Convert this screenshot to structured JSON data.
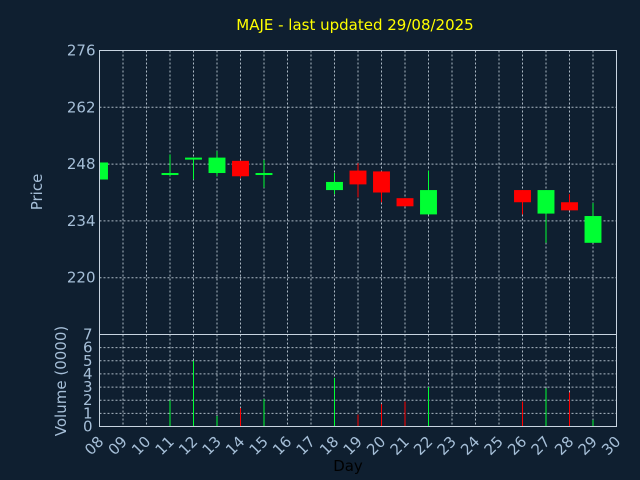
{
  "chart_data": {
    "type": "candlestick",
    "title": "MAJE - last updated 29/08/2025",
    "xlabel": "Day",
    "price_panel": {
      "ylabel": "Price",
      "ylim": [
        206,
        276
      ],
      "yticks": [
        220,
        234,
        248,
        262,
        276
      ],
      "grid": true
    },
    "volume_panel": {
      "ylabel": "Volume (0000)",
      "ylim": [
        0,
        7
      ],
      "yticks": [
        0,
        1,
        2,
        3,
        4,
        5,
        6,
        7
      ],
      "grid": true
    },
    "x_ticks": [
      "08",
      "09",
      "10",
      "11",
      "12",
      "13",
      "14",
      "15",
      "16",
      "17",
      "18",
      "19",
      "20",
      "21",
      "22",
      "23",
      "24",
      "25",
      "26",
      "27",
      "28",
      "29",
      "30"
    ],
    "colors": {
      "up": "#00ff33",
      "down": "#ff0000",
      "title": "#ffff00",
      "tick": "#a6bfd8",
      "background": "#0f1f30"
    },
    "series": [
      {
        "day": "08",
        "open": 244.2,
        "high": 248.4,
        "low": 244.2,
        "close": 248.4,
        "volume": 0
      },
      {
        "day": "11",
        "open": 245.8,
        "high": 250.4,
        "low": 245.0,
        "close": 245.8,
        "volume": 2.0
      },
      {
        "day": "12",
        "open": 249.6,
        "high": 249.6,
        "low": 244.2,
        "close": 249.6,
        "volume": 5.0
      },
      {
        "day": "13",
        "open": 245.8,
        "high": 251.2,
        "low": 245.0,
        "close": 249.6,
        "volume": 0.8
      },
      {
        "day": "14",
        "open": 248.8,
        "high": 248.8,
        "low": 244.6,
        "close": 245.0,
        "volume": 1.4
      },
      {
        "day": "15",
        "open": 245.8,
        "high": 249.0,
        "low": 242.2,
        "close": 245.8,
        "volume": 2.1
      },
      {
        "day": "18",
        "open": 241.6,
        "high": 245.8,
        "low": 240.6,
        "close": 243.6,
        "volume": 3.7
      },
      {
        "day": "19",
        "open": 246.4,
        "high": 248.2,
        "low": 239.8,
        "close": 243.0,
        "volume": 0.9
      },
      {
        "day": "20",
        "open": 246.2,
        "high": 246.2,
        "low": 238.6,
        "close": 241.0,
        "volume": 1.7
      },
      {
        "day": "21",
        "open": 239.6,
        "high": 239.6,
        "low": 237.6,
        "close": 237.6,
        "volume": 1.9
      },
      {
        "day": "22",
        "open": 235.6,
        "high": 246.4,
        "low": 235.6,
        "close": 241.6,
        "volume": 3.0
      },
      {
        "day": "26",
        "open": 241.6,
        "high": 241.6,
        "low": 235.6,
        "close": 238.6,
        "volume": 1.9
      },
      {
        "day": "27",
        "open": 235.8,
        "high": 241.6,
        "low": 228.6,
        "close": 241.6,
        "volume": 2.9
      },
      {
        "day": "28",
        "open": 238.6,
        "high": 240.6,
        "low": 236.6,
        "close": 236.6,
        "volume": 2.6
      },
      {
        "day": "29",
        "open": 228.6,
        "high": 238.4,
        "low": 228.6,
        "close": 235.2,
        "volume": 0.5
      }
    ]
  }
}
